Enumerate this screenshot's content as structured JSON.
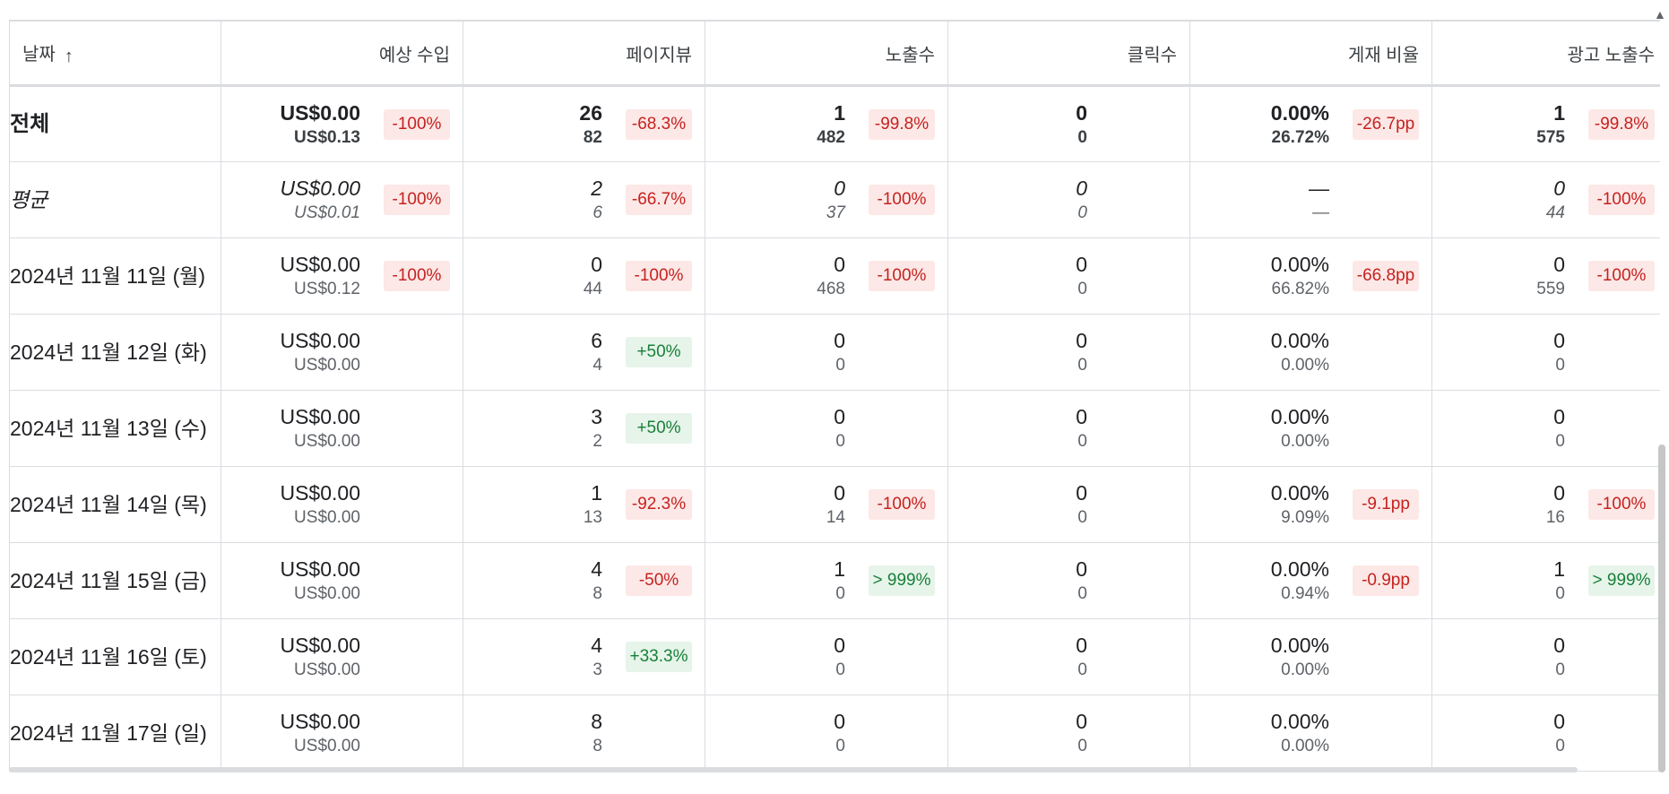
{
  "columns": [
    {
      "key": "date",
      "label": "날짜",
      "sort_icon": "arrow-up-icon",
      "sort_glyph": "↑"
    },
    {
      "key": "revenue",
      "label": "예상 수입"
    },
    {
      "key": "pageviews",
      "label": "페이지뷰"
    },
    {
      "key": "impressions",
      "label": "노출수"
    },
    {
      "key": "clicks",
      "label": "클릭수"
    },
    {
      "key": "coverage",
      "label": "게재 비율"
    },
    {
      "key": "ad_impressions",
      "label": "광고 노출수"
    }
  ],
  "rows": [
    {
      "type": "total",
      "date": "전체",
      "cells": [
        {
          "v1": "US$0.00",
          "v2": "US$0.13",
          "chip": "-100%",
          "dir": "neg"
        },
        {
          "v1": "26",
          "v2": "82",
          "chip": "-68.3%",
          "dir": "neg"
        },
        {
          "v1": "1",
          "v2": "482",
          "chip": "-99.8%",
          "dir": "neg"
        },
        {
          "v1": "0",
          "v2": "0",
          "chip": "",
          "dir": "none"
        },
        {
          "v1": "0.00%",
          "v2": "26.72%",
          "chip": "-26.7pp",
          "dir": "neg"
        },
        {
          "v1": "1",
          "v2": "575",
          "chip": "-99.8%",
          "dir": "neg"
        }
      ]
    },
    {
      "type": "avg",
      "date": "평균",
      "cells": [
        {
          "v1": "US$0.00",
          "v2": "US$0.01",
          "chip": "-100%",
          "dir": "neg"
        },
        {
          "v1": "2",
          "v2": "6",
          "chip": "-66.7%",
          "dir": "neg"
        },
        {
          "v1": "0",
          "v2": "37",
          "chip": "-100%",
          "dir": "neg"
        },
        {
          "v1": "0",
          "v2": "0",
          "chip": "",
          "dir": "none"
        },
        {
          "v1": "—",
          "v2": "—",
          "chip": "",
          "dir": "none"
        },
        {
          "v1": "0",
          "v2": "44",
          "chip": "-100%",
          "dir": "neg"
        }
      ]
    },
    {
      "type": "day",
      "date": "2024년 11월 11일 (월)",
      "cells": [
        {
          "v1": "US$0.00",
          "v2": "US$0.12",
          "chip": "-100%",
          "dir": "neg"
        },
        {
          "v1": "0",
          "v2": "44",
          "chip": "-100%",
          "dir": "neg"
        },
        {
          "v1": "0",
          "v2": "468",
          "chip": "-100%",
          "dir": "neg"
        },
        {
          "v1": "0",
          "v2": "0",
          "chip": "",
          "dir": "none"
        },
        {
          "v1": "0.00%",
          "v2": "66.82%",
          "chip": "-66.8pp",
          "dir": "neg"
        },
        {
          "v1": "0",
          "v2": "559",
          "chip": "-100%",
          "dir": "neg"
        }
      ]
    },
    {
      "type": "day",
      "date": "2024년 11월 12일 (화)",
      "cells": [
        {
          "v1": "US$0.00",
          "v2": "US$0.00",
          "chip": "",
          "dir": "none"
        },
        {
          "v1": "6",
          "v2": "4",
          "chip": "+50%",
          "dir": "pos"
        },
        {
          "v1": "0",
          "v2": "0",
          "chip": "",
          "dir": "none"
        },
        {
          "v1": "0",
          "v2": "0",
          "chip": "",
          "dir": "none"
        },
        {
          "v1": "0.00%",
          "v2": "0.00%",
          "chip": "",
          "dir": "none"
        },
        {
          "v1": "0",
          "v2": "0",
          "chip": "",
          "dir": "none"
        }
      ]
    },
    {
      "type": "day",
      "date": "2024년 11월 13일 (수)",
      "cells": [
        {
          "v1": "US$0.00",
          "v2": "US$0.00",
          "chip": "",
          "dir": "none"
        },
        {
          "v1": "3",
          "v2": "2",
          "chip": "+50%",
          "dir": "pos"
        },
        {
          "v1": "0",
          "v2": "0",
          "chip": "",
          "dir": "none"
        },
        {
          "v1": "0",
          "v2": "0",
          "chip": "",
          "dir": "none"
        },
        {
          "v1": "0.00%",
          "v2": "0.00%",
          "chip": "",
          "dir": "none"
        },
        {
          "v1": "0",
          "v2": "0",
          "chip": "",
          "dir": "none"
        }
      ]
    },
    {
      "type": "day",
      "date": "2024년 11월 14일 (목)",
      "cells": [
        {
          "v1": "US$0.00",
          "v2": "US$0.00",
          "chip": "",
          "dir": "none"
        },
        {
          "v1": "1",
          "v2": "13",
          "chip": "-92.3%",
          "dir": "neg"
        },
        {
          "v1": "0",
          "v2": "14",
          "chip": "-100%",
          "dir": "neg"
        },
        {
          "v1": "0",
          "v2": "0",
          "chip": "",
          "dir": "none"
        },
        {
          "v1": "0.00%",
          "v2": "9.09%",
          "chip": "-9.1pp",
          "dir": "neg"
        },
        {
          "v1": "0",
          "v2": "16",
          "chip": "-100%",
          "dir": "neg"
        }
      ]
    },
    {
      "type": "day",
      "date": "2024년 11월 15일 (금)",
      "cells": [
        {
          "v1": "US$0.00",
          "v2": "US$0.00",
          "chip": "",
          "dir": "none"
        },
        {
          "v1": "4",
          "v2": "8",
          "chip": "-50%",
          "dir": "neg"
        },
        {
          "v1": "1",
          "v2": "0",
          "chip": "> 999%",
          "dir": "pos"
        },
        {
          "v1": "0",
          "v2": "0",
          "chip": "",
          "dir": "none"
        },
        {
          "v1": "0.00%",
          "v2": "0.94%",
          "chip": "-0.9pp",
          "dir": "neg"
        },
        {
          "v1": "1",
          "v2": "0",
          "chip": "> 999%",
          "dir": "pos"
        }
      ]
    },
    {
      "type": "day",
      "date": "2024년 11월 16일 (토)",
      "cells": [
        {
          "v1": "US$0.00",
          "v2": "US$0.00",
          "chip": "",
          "dir": "none"
        },
        {
          "v1": "4",
          "v2": "3",
          "chip": "+33.3%",
          "dir": "pos"
        },
        {
          "v1": "0",
          "v2": "0",
          "chip": "",
          "dir": "none"
        },
        {
          "v1": "0",
          "v2": "0",
          "chip": "",
          "dir": "none"
        },
        {
          "v1": "0.00%",
          "v2": "0.00%",
          "chip": "",
          "dir": "none"
        },
        {
          "v1": "0",
          "v2": "0",
          "chip": "",
          "dir": "none"
        }
      ]
    },
    {
      "type": "day",
      "date": "2024년 11월 17일 (일)",
      "cells": [
        {
          "v1": "US$0.00",
          "v2": "US$0.00",
          "chip": "",
          "dir": "none"
        },
        {
          "v1": "8",
          "v2": "8",
          "chip": "",
          "dir": "none"
        },
        {
          "v1": "0",
          "v2": "0",
          "chip": "",
          "dir": "none"
        },
        {
          "v1": "0",
          "v2": "0",
          "chip": "",
          "dir": "none"
        },
        {
          "v1": "0.00%",
          "v2": "0.00%",
          "chip": "",
          "dir": "none"
        },
        {
          "v1": "0",
          "v2": "0",
          "chip": "",
          "dir": "none"
        }
      ]
    }
  ],
  "colors": {
    "negative_bg": "#fce8e6",
    "negative_fg": "#c5221f",
    "positive_bg": "#e6f4ea",
    "positive_fg": "#188038",
    "border": "#dadce0"
  },
  "scrollbars": {
    "vertical_arrow_glyph": "▲"
  }
}
